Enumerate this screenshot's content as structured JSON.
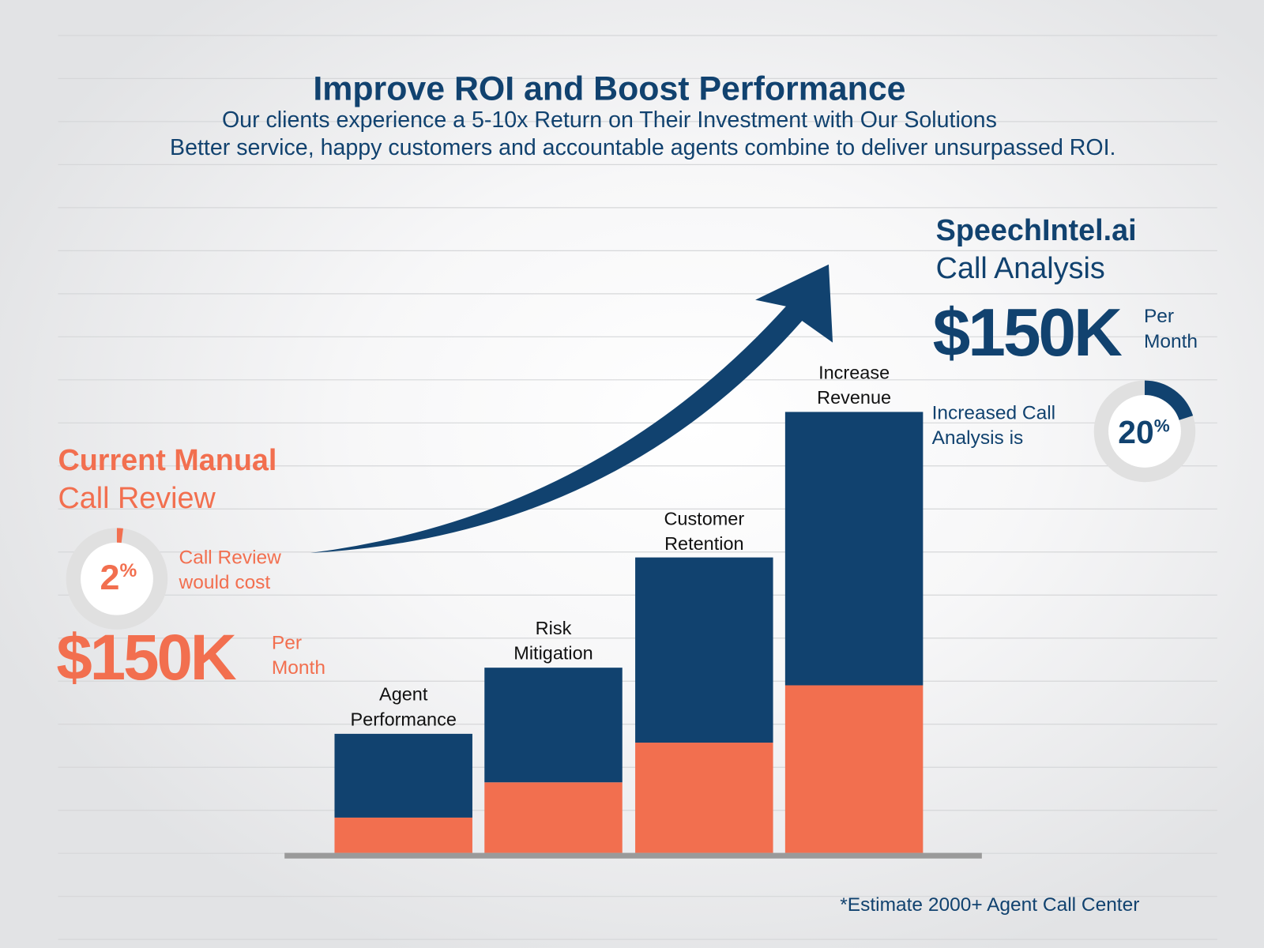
{
  "header": {
    "title": "Improve ROI and Boost Performance",
    "subtitle_1": "Our clients experience a 5-10x Return on Their Investment with Our Solutions",
    "subtitle_2": "Better service, happy customers and accountable agents combine to deliver unsurpassed ROI."
  },
  "left_panel": {
    "heading_bold": "Current Manual",
    "heading_light": "Call Review",
    "donut_value": "2",
    "donut_percent": 2,
    "percent_sign": "%",
    "desc_line1": "Call Review",
    "desc_line2": "would cost",
    "amount": "$150K",
    "per": "Per",
    "month": "Month"
  },
  "right_panel": {
    "heading_bold": "SpeechIntel.ai",
    "heading_light": "Call Analysis",
    "amount": "$150K",
    "per": "Per",
    "month": "Month",
    "desc_line1": "Increased Call",
    "desc_line2": "Analysis is",
    "donut_value": "20",
    "donut_percent": 20,
    "percent_sign": "%"
  },
  "footnote": "*Estimate 2000+ Agent Call Center",
  "colors": {
    "navy": "#11426f",
    "orange": "#f26f4f",
    "track": "#e0e0e0",
    "baseline": "#9a9a9a"
  },
  "chart_data": {
    "type": "bar",
    "stacked": true,
    "categories": [
      [
        "Agent",
        "Performance"
      ],
      [
        "Risk",
        "Mitigation"
      ],
      [
        "Customer",
        "Retention"
      ],
      [
        "Increase",
        "Revenue"
      ]
    ],
    "series": [
      {
        "color": "#f26f4f",
        "values": [
          8,
          16,
          25,
          38
        ]
      },
      {
        "color": "#11426f",
        "values": [
          19,
          26,
          42,
          62
        ]
      }
    ],
    "ylim": [
      0,
      100
    ],
    "grid": false,
    "annotation": "upward-trend-arrow"
  }
}
